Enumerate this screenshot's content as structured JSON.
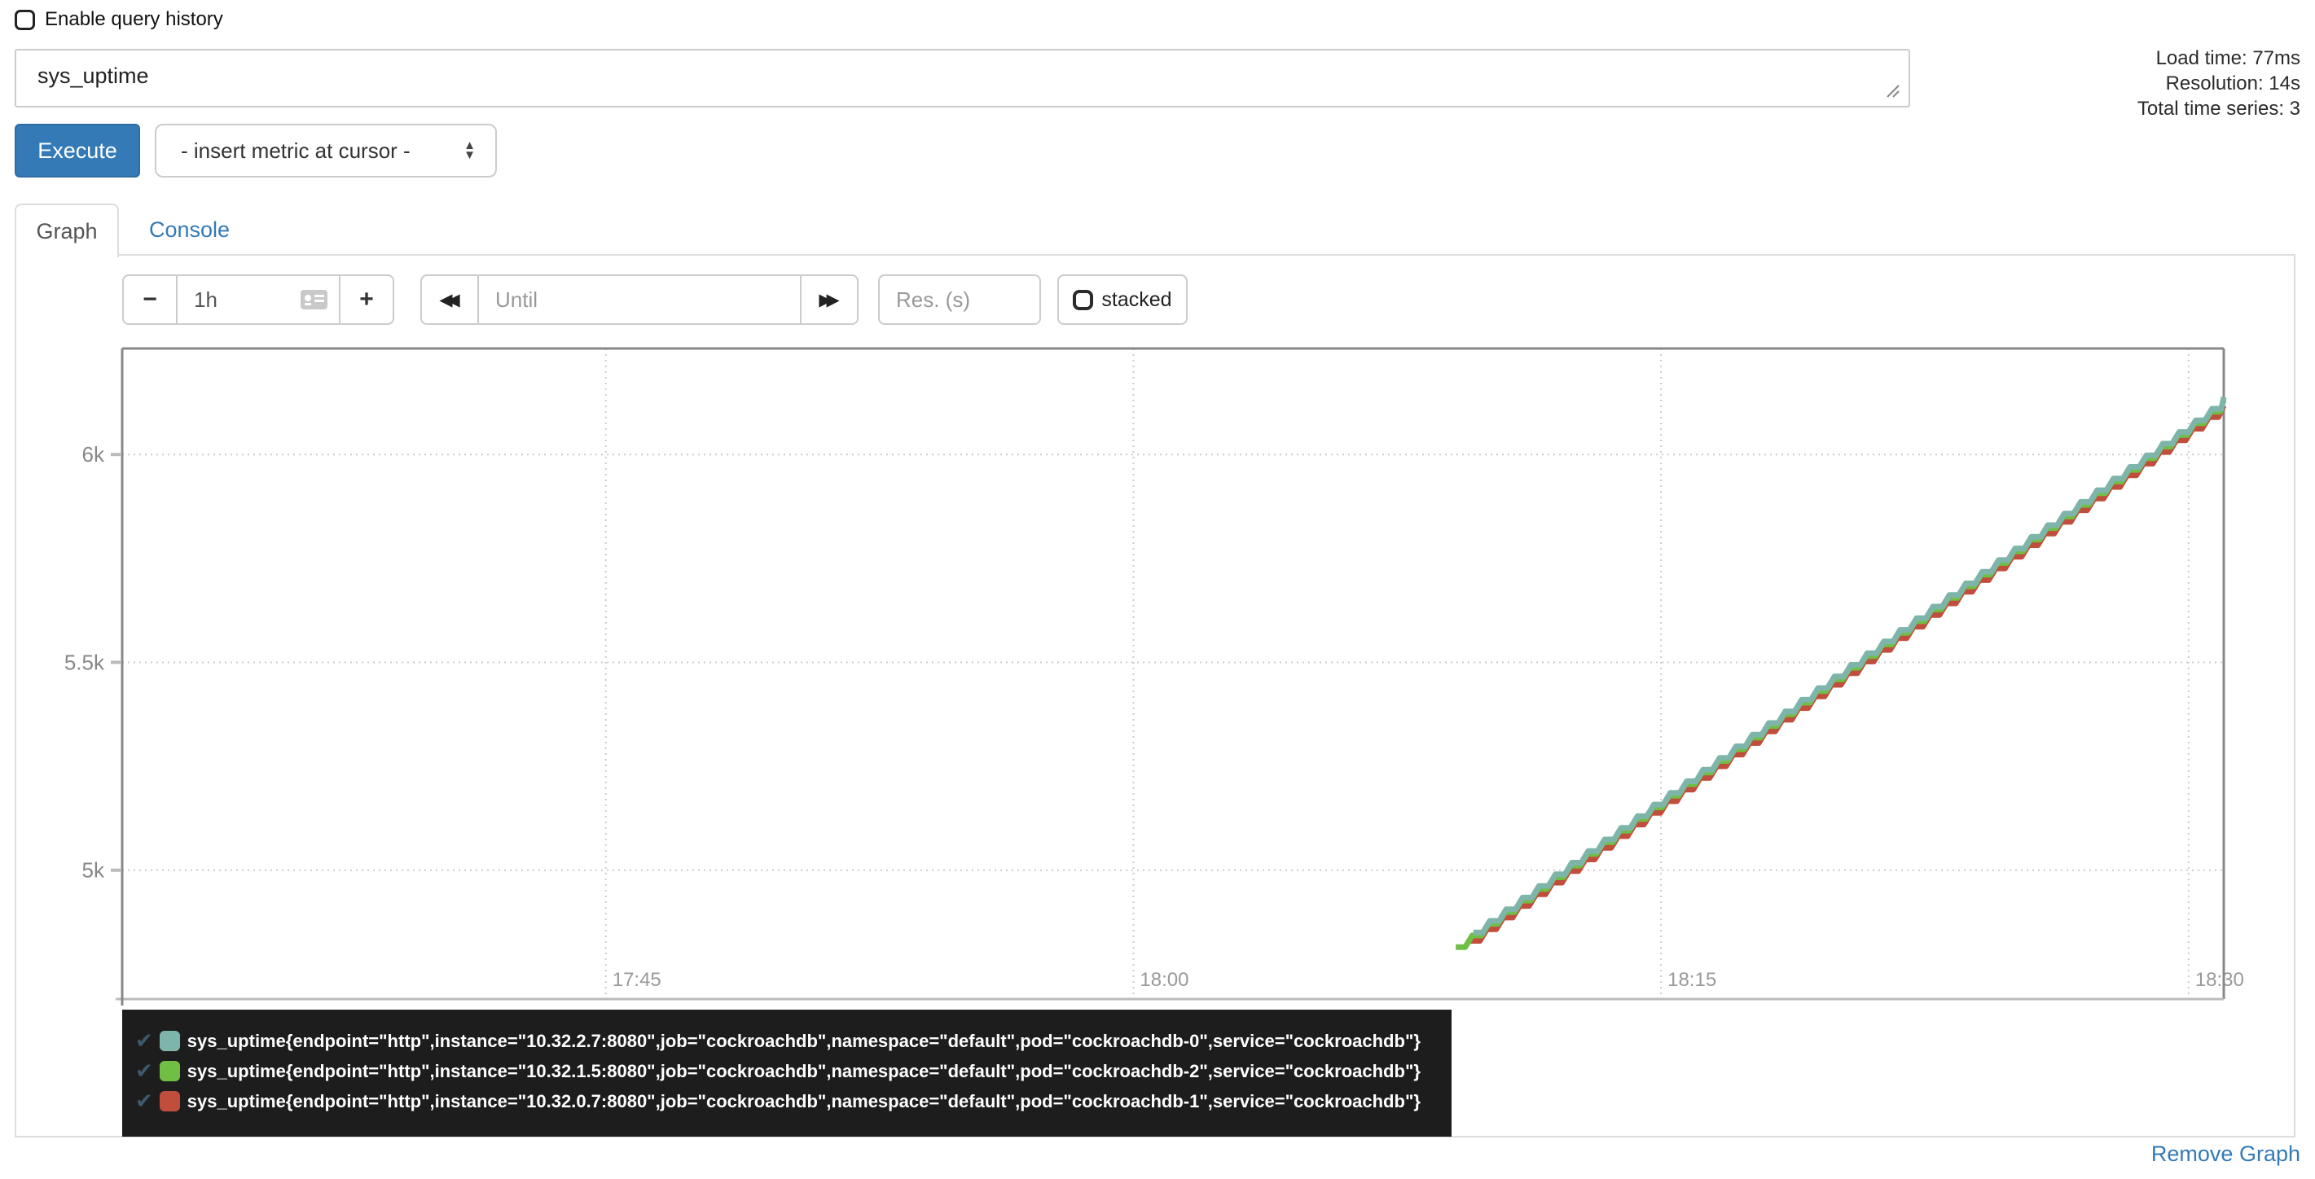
{
  "header": {
    "enable_query_history_label": "Enable query history",
    "stats": {
      "load_time": "Load time: 77ms",
      "resolution": "Resolution: 14s",
      "total_series": "Total time series: 3"
    }
  },
  "query": {
    "value": "sys_uptime"
  },
  "toolbar": {
    "execute_label": "Execute",
    "insert_metric_label": "- insert metric at cursor -"
  },
  "tabs": {
    "graph": "Graph",
    "console": "Console"
  },
  "graph_controls": {
    "range_decrease_label": "−",
    "range_value": "1h",
    "range_increase_label": "+",
    "shift_back_glyph": "◀◀",
    "until_placeholder": "Until",
    "shift_forward_glyph": "▶▶",
    "res_placeholder": "Res. (s)",
    "stacked_label": "stacked"
  },
  "icons": {
    "select_up": "▲",
    "select_down": "▼",
    "series_check": "✔"
  },
  "colors": {
    "accent": "#337ab7",
    "legend_bg": "#1d1d1d",
    "legend_check": "#3e5a6e"
  },
  "chart_data": {
    "type": "line",
    "line_style": "staircase",
    "title": "",
    "xlabel": "",
    "ylabel": "",
    "grid": "dotted",
    "legend_position": "bottom-left",
    "x_axis": {
      "start": "17:31:15",
      "end": "18:31:00",
      "ticks": [
        "17:45",
        "18:00",
        "18:15",
        "18:30"
      ]
    },
    "y_axis": {
      "min": 4690,
      "max": 6255,
      "ticks": [
        {
          "value": 5000,
          "label": "5k"
        },
        {
          "value": 5500,
          "label": "5.5k"
        },
        {
          "value": 6000,
          "label": "6k"
        }
      ]
    },
    "series": [
      {
        "label": "sys_uptime{endpoint=\"http\",instance=\"10.32.2.7:8080\",job=\"cockroachdb\",namespace=\"default\",pod=\"cockroachdb-0\",service=\"cockroachdb\"}",
        "color": "#7EB5AA",
        "start_time": "18:09:40",
        "start_value": 4850,
        "slope_per_second": 1,
        "step_seconds": 28,
        "points_approx": [
          [
            "18:10",
            4870
          ],
          [
            "18:15",
            5170
          ],
          [
            "18:20",
            5470
          ],
          [
            "18:25",
            5770
          ],
          [
            "18:30",
            6070
          ]
        ]
      },
      {
        "label": "sys_uptime{endpoint=\"http\",instance=\"10.32.1.5:8080\",job=\"cockroachdb\",namespace=\"default\",pod=\"cockroachdb-2\",service=\"cockroachdb\"}",
        "color": "#71BE44",
        "start_time": "18:09:10",
        "start_value": 4815,
        "slope_per_second": 1,
        "step_seconds": 28,
        "points_approx": [
          [
            "18:10",
            4865
          ],
          [
            "18:15",
            5165
          ],
          [
            "18:20",
            5465
          ],
          [
            "18:25",
            5765
          ],
          [
            "18:30",
            6065
          ]
        ]
      },
      {
        "label": "sys_uptime{endpoint=\"http\",instance=\"10.32.0.7:8080\",job=\"cockroachdb\",namespace=\"default\",pod=\"cockroachdb-1\",service=\"cockroachdb\"}",
        "color": "#C14E3D",
        "start_time": "18:09:35",
        "start_value": 4830,
        "slope_per_second": 1,
        "step_seconds": 28,
        "points_approx": [
          [
            "18:10",
            4855
          ],
          [
            "18:15",
            5155
          ],
          [
            "18:20",
            5455
          ],
          [
            "18:25",
            5755
          ],
          [
            "18:30",
            6055
          ]
        ]
      }
    ]
  },
  "footer": {
    "remove_graph_label": "Remove Graph"
  }
}
